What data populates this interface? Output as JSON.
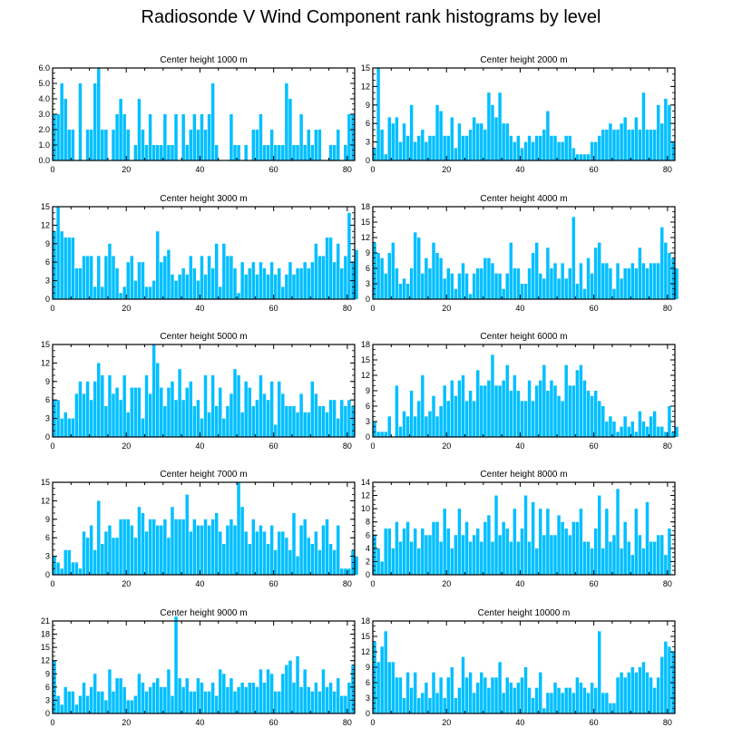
{
  "title": "Radiosonde V Wind Component rank histograms by level",
  "colors": {
    "bar": "#00bfff",
    "axis": "#000000",
    "background": "#ffffff"
  },
  "chart_data": [
    {
      "type": "bar",
      "title": "Center height 1000 m",
      "xlim": [
        0,
        82
      ],
      "ylim": [
        0,
        6
      ],
      "xticks": [
        0,
        20,
        40,
        60,
        80
      ],
      "yticks": [
        0,
        1,
        2,
        3,
        4,
        5,
        6
      ],
      "ytick_labels": [
        "0.0",
        "1.0",
        "2.0",
        "3.0",
        "4.0",
        "5.0",
        "6.0"
      ],
      "values": [
        3,
        3,
        5,
        4,
        2,
        2,
        0,
        5,
        0,
        2,
        2,
        5,
        6,
        2,
        2,
        0,
        2,
        3,
        4,
        3,
        2,
        0,
        1,
        4,
        2,
        1,
        3,
        1,
        1,
        1,
        3,
        1,
        1,
        3,
        0,
        3,
        1,
        2,
        3,
        2,
        3,
        2,
        3,
        5,
        1,
        0,
        0,
        0,
        3,
        1,
        1,
        0,
        1,
        0,
        2,
        2,
        3,
        1,
        1,
        2,
        1,
        1,
        1,
        5,
        4,
        1,
        1,
        3,
        1,
        2,
        1,
        2,
        2,
        0,
        0,
        1,
        1,
        2,
        0,
        1,
        3,
        3
      ]
    },
    {
      "type": "bar",
      "title": "Center height 2000 m",
      "xlim": [
        0,
        82
      ],
      "ylim": [
        0,
        15
      ],
      "xticks": [
        0,
        20,
        40,
        60,
        80
      ],
      "yticks": [
        0,
        3,
        6,
        9,
        12,
        15
      ],
      "values": [
        2,
        15,
        5,
        1,
        7,
        6,
        7,
        3,
        6,
        4,
        9,
        3,
        4,
        5,
        3,
        4,
        4,
        9,
        8,
        4,
        4,
        7,
        2,
        6,
        4,
        4,
        5,
        7,
        6,
        6,
        5,
        11,
        9,
        7,
        11,
        6,
        6,
        4,
        3,
        4,
        2,
        3,
        4,
        3,
        4,
        4,
        5,
        8,
        4,
        4,
        3,
        3,
        4,
        4,
        2,
        1,
        1,
        1,
        1,
        3,
        3,
        4,
        5,
        5,
        6,
        5,
        5,
        6,
        7,
        5,
        5,
        7,
        5,
        11,
        5,
        5,
        5,
        9,
        6,
        10,
        9,
        3
      ]
    },
    {
      "type": "bar",
      "title": "Center height 3000 m",
      "xlim": [
        0,
        82
      ],
      "ylim": [
        0,
        15
      ],
      "xticks": [
        0,
        20,
        40,
        60,
        80
      ],
      "yticks": [
        0,
        3,
        6,
        9,
        12,
        15
      ],
      "values": [
        11,
        15,
        11,
        10,
        10,
        10,
        5,
        5,
        7,
        7,
        7,
        2,
        7,
        2,
        7,
        9,
        7,
        5,
        1,
        2,
        6,
        7,
        3,
        6,
        6,
        2,
        2,
        3,
        11,
        6,
        7,
        8,
        4,
        3,
        4,
        5,
        4,
        7,
        5,
        3,
        7,
        4,
        7,
        5,
        9,
        2,
        9,
        7,
        7,
        5,
        1,
        6,
        4,
        5,
        6,
        4,
        6,
        5,
        4,
        6,
        4,
        5,
        2,
        4,
        6,
        4,
        5,
        5,
        6,
        5,
        6,
        9,
        7,
        7,
        10,
        10,
        6,
        9,
        5,
        7,
        14,
        6,
        8
      ]
    },
    {
      "type": "bar",
      "title": "Center height 4000 m",
      "xlim": [
        0,
        82
      ],
      "ylim": [
        0,
        18
      ],
      "xticks": [
        0,
        20,
        40,
        60,
        80
      ],
      "yticks": [
        0,
        3,
        6,
        9,
        12,
        15,
        18
      ],
      "values": [
        11,
        9,
        8,
        5,
        9,
        11,
        6,
        3,
        4,
        3,
        6,
        13,
        12,
        5,
        8,
        6,
        11,
        9,
        8,
        4,
        6,
        5,
        2,
        5,
        7,
        5,
        1,
        5,
        6,
        6,
        8,
        8,
        7,
        5,
        5,
        2,
        5,
        11,
        6,
        6,
        3,
        3,
        6,
        9,
        11,
        5,
        4,
        10,
        6,
        7,
        4,
        7,
        4,
        6,
        16,
        3,
        7,
        2,
        8,
        5,
        10,
        11,
        7,
        7,
        6,
        2,
        7,
        4,
        6,
        6,
        7,
        6,
        10,
        7,
        6,
        7,
        7,
        7,
        14,
        11,
        9,
        8,
        6
      ]
    },
    {
      "type": "bar",
      "title": "Center height 5000 m",
      "xlim": [
        0,
        82
      ],
      "ylim": [
        0,
        15
      ],
      "xticks": [
        0,
        20,
        40,
        60,
        80
      ],
      "yticks": [
        0,
        3,
        6,
        9,
        12,
        15
      ],
      "values": [
        6,
        6,
        3,
        4,
        3,
        3,
        7,
        9,
        7,
        9,
        6,
        9,
        12,
        10,
        5,
        10,
        7,
        8,
        6,
        10,
        4,
        8,
        8,
        8,
        3,
        10,
        7,
        15,
        12,
        8,
        5,
        8,
        9,
        6,
        11,
        6,
        8,
        9,
        5,
        6,
        3,
        10,
        4,
        10,
        5,
        8,
        3,
        5,
        7,
        11,
        10,
        4,
        9,
        8,
        5,
        6,
        10,
        7,
        6,
        9,
        2,
        9,
        7,
        5,
        5,
        5,
        4,
        7,
        4,
        4,
        9,
        7,
        5,
        5,
        4,
        6,
        6,
        3,
        6,
        5,
        6,
        5
      ]
    },
    {
      "type": "bar",
      "title": "Center height 6000 m",
      "xlim": [
        0,
        82
      ],
      "ylim": [
        0,
        18
      ],
      "xticks": [
        0,
        20,
        40,
        60,
        80
      ],
      "yticks": [
        0,
        3,
        6,
        9,
        12,
        15,
        18
      ],
      "values": [
        3,
        1,
        1,
        1,
        4,
        0,
        10,
        2,
        5,
        4,
        9,
        4,
        7,
        12,
        4,
        5,
        8,
        4,
        6,
        10,
        7,
        11,
        8,
        11,
        12,
        7,
        9,
        7,
        13,
        10,
        10,
        11,
        16,
        10,
        10,
        11,
        14,
        9,
        12,
        9,
        7,
        7,
        11,
        7,
        10,
        11,
        14,
        9,
        11,
        10,
        8,
        7,
        14,
        10,
        10,
        13,
        14,
        11,
        9,
        8,
        9,
        7,
        6,
        3,
        4,
        3,
        1,
        2,
        4,
        2,
        3,
        1,
        5,
        3,
        2,
        4,
        5,
        2,
        2,
        1,
        6,
        1,
        2
      ]
    },
    {
      "type": "bar",
      "title": "Center height 7000 m",
      "xlim": [
        0,
        82
      ],
      "ylim": [
        0,
        15
      ],
      "xticks": [
        0,
        20,
        40,
        60,
        80
      ],
      "yticks": [
        0,
        3,
        6,
        9,
        12,
        15
      ],
      "values": [
        3,
        2,
        1,
        4,
        4,
        2,
        2,
        1,
        7,
        6,
        8,
        4,
        12,
        5,
        7,
        8,
        6,
        6,
        9,
        9,
        9,
        8,
        6,
        11,
        10,
        7,
        9,
        9,
        8,
        8,
        9,
        6,
        11,
        9,
        9,
        9,
        13,
        7,
        9,
        8,
        8,
        9,
        8,
        9,
        10,
        7,
        5,
        8,
        9,
        8,
        15,
        11,
        7,
        5,
        9,
        7,
        8,
        7,
        5,
        8,
        4,
        7,
        7,
        6,
        4,
        10,
        3,
        8,
        9,
        6,
        5,
        7,
        4,
        8,
        9,
        5,
        4,
        8,
        1,
        1,
        1,
        4,
        3
      ]
    },
    {
      "type": "bar",
      "title": "Center height 8000 m",
      "xlim": [
        0,
        82
      ],
      "ylim": [
        0,
        14
      ],
      "xticks": [
        0,
        20,
        40,
        60,
        80
      ],
      "yticks": [
        0,
        2,
        4,
        6,
        8,
        10,
        12,
        14
      ],
      "values": [
        6,
        4,
        2,
        7,
        7,
        4,
        8,
        5,
        7,
        8,
        5,
        7,
        4,
        7,
        6,
        6,
        8,
        8,
        5,
        10,
        7,
        4,
        6,
        10,
        6,
        8,
        5,
        6,
        7,
        5,
        8,
        9,
        5,
        12,
        6,
        8,
        7,
        5,
        10,
        5,
        7,
        12,
        5,
        11,
        4,
        10,
        6,
        10,
        6,
        6,
        9,
        8,
        7,
        6,
        8,
        8,
        10,
        5,
        5,
        4,
        7,
        12,
        4,
        10,
        5,
        6,
        13,
        4,
        8,
        5,
        3,
        10,
        6,
        4,
        11,
        5,
        5,
        6,
        6,
        3,
        7,
        0
      ]
    },
    {
      "type": "bar",
      "title": "Center height 9000 m",
      "xlim": [
        0,
        82
      ],
      "ylim": [
        0,
        21
      ],
      "xticks": [
        0,
        20,
        40,
        60,
        80
      ],
      "yticks": [
        0,
        3,
        6,
        9,
        12,
        15,
        18,
        21
      ],
      "values": [
        12,
        4,
        2,
        6,
        5,
        5,
        2,
        4,
        7,
        4,
        6,
        9,
        5,
        5,
        3,
        10,
        5,
        8,
        8,
        6,
        3,
        3,
        4,
        9,
        7,
        5,
        6,
        7,
        8,
        6,
        6,
        10,
        4,
        22,
        8,
        6,
        8,
        5,
        5,
        8,
        7,
        5,
        5,
        7,
        4,
        10,
        9,
        6,
        8,
        5,
        6,
        7,
        6,
        7,
        7,
        6,
        10,
        7,
        10,
        9,
        5,
        5,
        9,
        11,
        12,
        7,
        13,
        6,
        10,
        6,
        5,
        7,
        5,
        10,
        6,
        7,
        5,
        8,
        4,
        4,
        7,
        11
      ]
    },
    {
      "type": "bar",
      "title": "Center height 10000 m",
      "xlim": [
        0,
        82
      ],
      "ylim": [
        0,
        18
      ],
      "xticks": [
        0,
        20,
        40,
        60,
        80
      ],
      "yticks": [
        0,
        3,
        6,
        9,
        12,
        15,
        18
      ],
      "values": [
        14,
        10,
        13,
        16,
        10,
        10,
        7,
        7,
        3,
        8,
        5,
        8,
        3,
        4,
        6,
        3,
        8,
        4,
        7,
        3,
        7,
        9,
        3,
        5,
        11,
        7,
        8,
        4,
        6,
        8,
        7,
        5,
        7,
        7,
        10,
        4,
        7,
        6,
        5,
        6,
        7,
        9,
        5,
        3,
        5,
        8,
        1,
        4,
        4,
        6,
        5,
        4,
        5,
        5,
        4,
        7,
        6,
        5,
        4,
        6,
        5,
        16,
        4,
        4,
        2,
        2,
        7,
        8,
        7,
        8,
        9,
        8,
        9,
        10,
        8,
        7,
        5,
        7,
        11,
        14,
        13,
        12
      ]
    }
  ]
}
